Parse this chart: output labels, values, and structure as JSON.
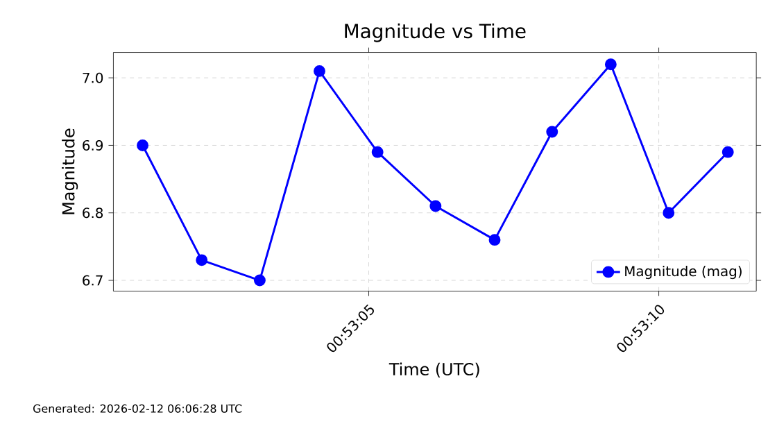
{
  "chart_data": {
    "type": "line",
    "title": "Magnitude vs Time",
    "xlabel": "Time (UTC)",
    "ylabel": "Magnitude",
    "x": [
      0.883639,
      0.883922,
      0.8842,
      0.884486,
      0.884764,
      0.885042,
      0.885325,
      0.8856,
      0.885881,
      0.886158,
      0.886442
    ],
    "series": [
      {
        "name": "Magnitude (mag)",
        "color": "#0000ff",
        "values": [
          6.9,
          6.73,
          6.7,
          7.01,
          6.89,
          6.81,
          6.76,
          6.92,
          7.02,
          6.8,
          6.89
        ]
      }
    ],
    "xlim": [
      0.883499,
      0.886578
    ],
    "ylim": [
      6.684,
      7.0376
    ],
    "xticks": [
      {
        "value": 0.884722,
        "label": "00:53:05"
      },
      {
        "value": 0.886111,
        "label": "00:53:10"
      }
    ],
    "yticks": [
      {
        "value": 6.7,
        "label": "6.7"
      },
      {
        "value": 6.8,
        "label": "6.8"
      },
      {
        "value": 6.9,
        "label": "6.9"
      },
      {
        "value": 7.0,
        "label": "7.0"
      }
    ],
    "grid": true,
    "legend": "bottom right",
    "marker": "circle",
    "line_style": "solid",
    "annotations": [
      "Generated: 2026-02-12 06:06:28 UTC"
    ]
  }
}
